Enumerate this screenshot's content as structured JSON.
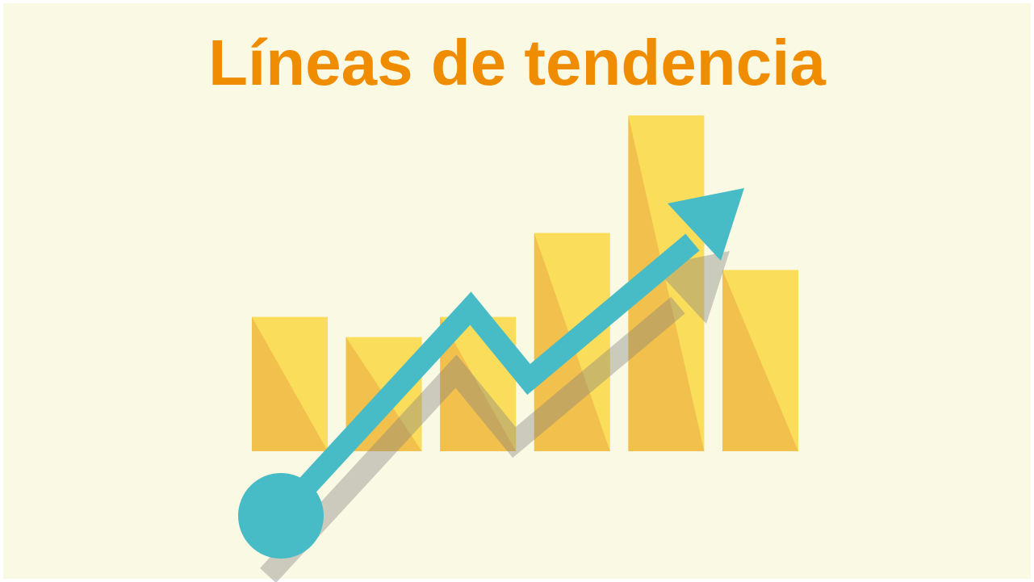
{
  "slide": {
    "title": "Líneas de tendencia"
  },
  "illustration": {
    "bar_heights": [
      0.4,
      0.34,
      0.4,
      0.65,
      1.0,
      0.54
    ],
    "icons": [
      "bar-chart-icon",
      "trend-arrow-icon"
    ],
    "colors": {
      "background": "#faf9e4",
      "title": "#f08c00",
      "bar_light": "#fbdd5c",
      "bar_dark": "#f2c04c",
      "arrow": "#47bbc6",
      "arrow_shadow": "#7f7f7f"
    }
  }
}
